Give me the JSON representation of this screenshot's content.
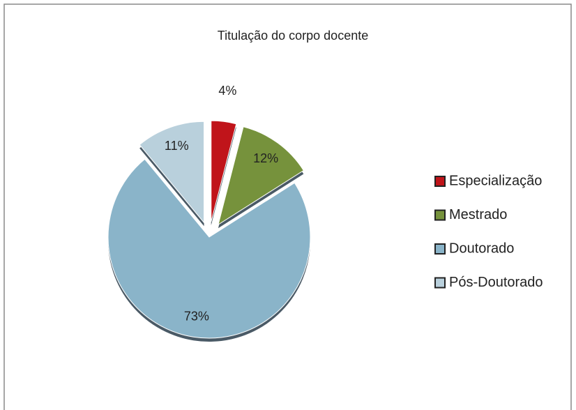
{
  "chart_data": {
    "type": "pie",
    "title": "Titulação do corpo docente",
    "categories": [
      "Especialização",
      "Mestrado",
      "Doutorado",
      "Pós-Doutorado"
    ],
    "values": [
      4,
      12,
      73,
      11
    ],
    "value_labels": [
      "4%",
      "12%",
      "73%",
      "11%"
    ],
    "colors": [
      "#c0141a",
      "#76923c",
      "#8ab4c9",
      "#b9d0dc"
    ],
    "legend": "right"
  }
}
